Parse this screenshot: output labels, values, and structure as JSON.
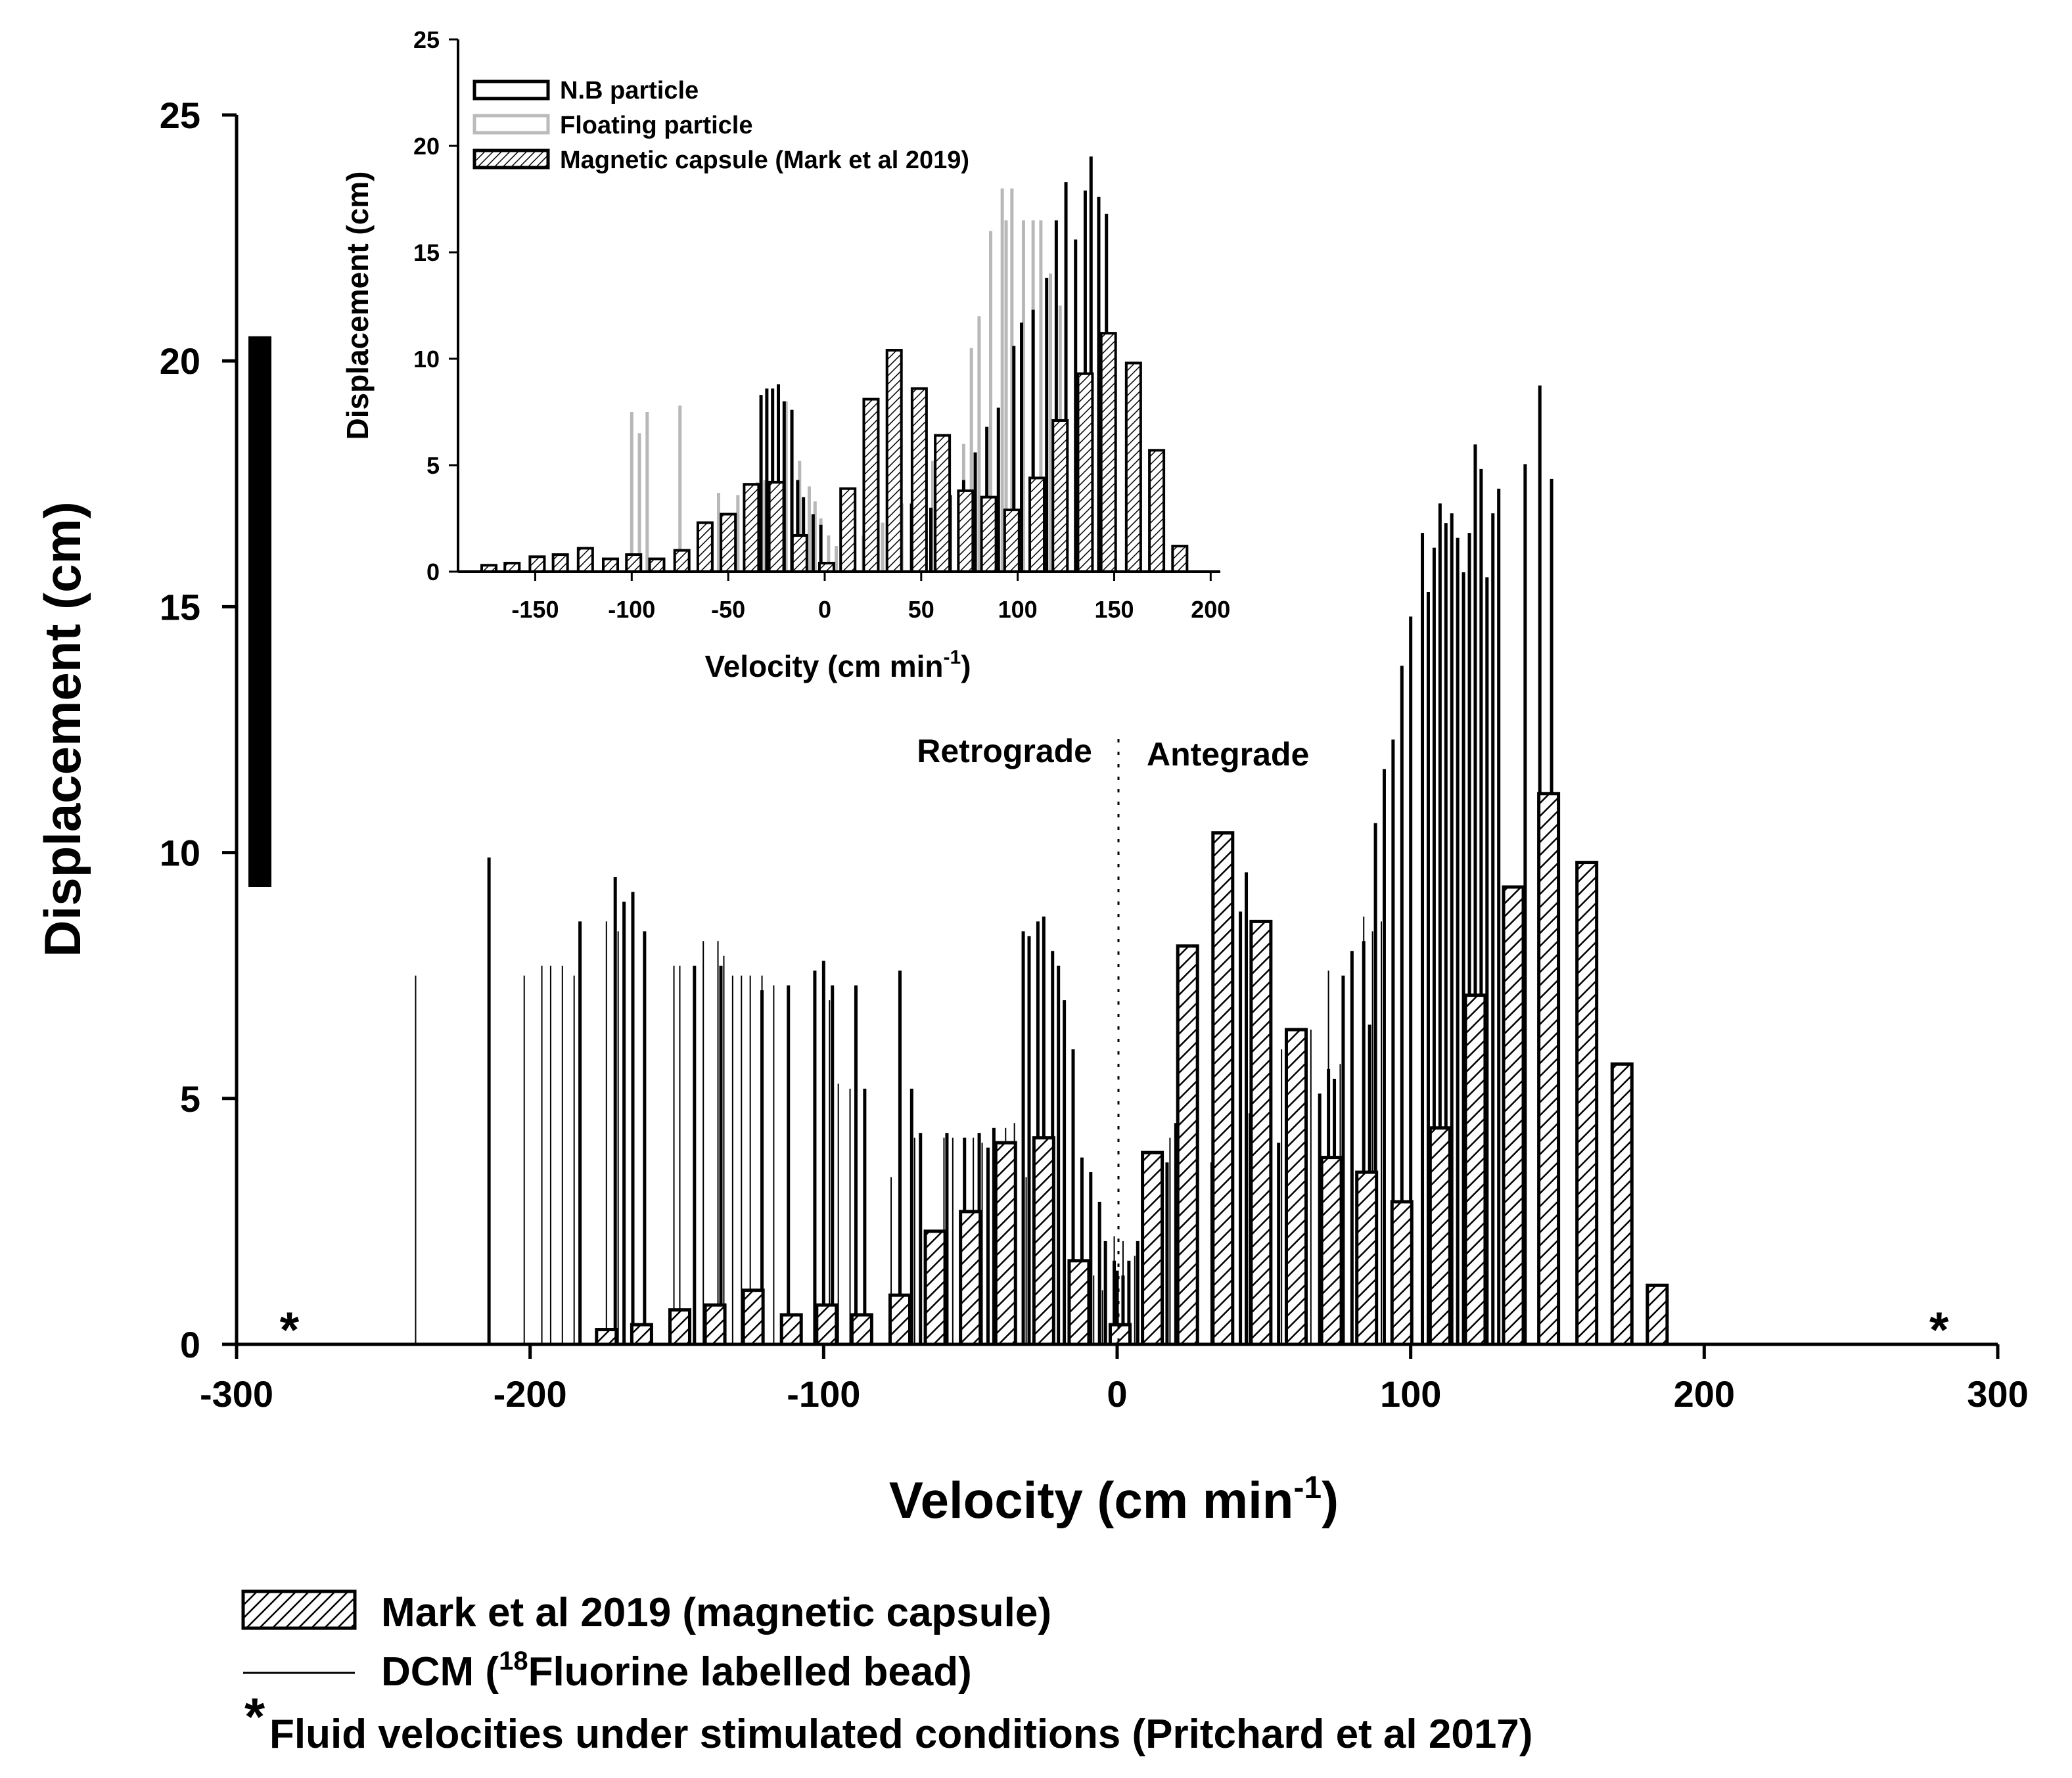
{
  "chart_data": [
    {
      "type": "bar",
      "title": "",
      "xlabel": "Velocity (cm min",
      "xlabel_sup": "-1",
      "xlabel_close": ")",
      "ylabel": "Displacement (cm)",
      "xlim": [
        -300,
        300
      ],
      "ylim": [
        0,
        25
      ],
      "xticks": [
        "-300",
        "-200",
        "-100",
        "0",
        "100",
        "200",
        "300"
      ],
      "yticks": [
        "0",
        "5",
        "10",
        "15",
        "20",
        "25"
      ],
      "region_labels": {
        "left": "Retrograde",
        "right": "Antegrade"
      },
      "star_symbol": "*",
      "stars_x": [
        -282,
        280
      ],
      "range_bar": {
        "y_from": 9.3,
        "y_to": 20.5
      },
      "series": [
        {
          "name": "Mark et al 2019 (magnetic capsule)",
          "style": "hatched",
          "x": [
            -174,
            -162,
            -149,
            -137,
            -124,
            -111,
            -99,
            -87,
            -74,
            -62,
            -50,
            -38,
            -25,
            -13,
            1,
            12,
            24,
            36,
            49,
            61,
            73,
            85,
            97,
            110,
            122,
            135,
            147,
            160,
            172,
            184
          ],
          "values": [
            0.3,
            0.4,
            0.7,
            0.8,
            1.1,
            0.6,
            0.8,
            0.6,
            1.0,
            2.3,
            2.7,
            4.1,
            4.2,
            1.7,
            0.4,
            3.9,
            8.1,
            10.4,
            8.6,
            6.4,
            3.8,
            3.5,
            2.9,
            4.4,
            7.1,
            9.3,
            11.2,
            9.8,
            5.7,
            1.2
          ]
        },
        {
          "name": "DCM (",
          "name_sup": "18",
          "name_rest": "Fluorine labelled bead)",
          "style": "thin-line",
          "x": [
            -239,
            -202,
            -196,
            -193,
            -189,
            -185,
            -174,
            -170,
            -165,
            -151,
            -149,
            -141,
            -136,
            -134,
            -131,
            -128,
            -125,
            -121,
            -117,
            -112,
            -98,
            -95,
            -91,
            -77,
            -74,
            -69,
            -59,
            -56,
            -52,
            -49,
            -46,
            -38,
            -35,
            -31,
            -22,
            -18,
            -15,
            -12,
            -8,
            -5,
            -1,
            2,
            6,
            9,
            14,
            18,
            21,
            26,
            32,
            38,
            42,
            45,
            52,
            56,
            62,
            66,
            69,
            72,
            76,
            80,
            84,
            87,
            90,
            94
          ],
          "values": [
            7.5,
            7.5,
            7.7,
            7.7,
            7.7,
            7.5,
            8.6,
            8.4,
            8.5,
            7.7,
            7.7,
            8.2,
            8.2,
            7.9,
            7.5,
            7.5,
            7.5,
            7.5,
            7.3,
            6.7,
            7.0,
            5.3,
            5.2,
            3.4,
            4.2,
            4.2,
            4.2,
            4.2,
            4.2,
            4.2,
            4.1,
            4.4,
            4.5,
            3.4,
            2.6,
            2.2,
            1.6,
            1.5,
            1.4,
            1.1,
            2.2,
            2.1,
            1.8,
            1.8,
            3.1,
            4.2,
            4.4,
            2.0,
            3.7,
            3.3,
            3.1,
            4.7,
            4.2,
            6.0,
            5.6,
            6.4,
            4.6,
            7.6,
            5.7,
            7.6,
            8.7,
            8.4,
            8.6,
            10.2
          ]
        },
        {
          "name": "N.B particle",
          "style": "thick-line",
          "x": [
            -214,
            -183,
            -171,
            -168,
            -165,
            -161,
            -144,
            -135,
            -121,
            -112,
            -103,
            -100,
            -97,
            -89,
            -86,
            -74,
            -70,
            -67,
            -58,
            -52,
            -47,
            -44,
            -42,
            -32,
            -30,
            -27,
            -25,
            -22,
            -20,
            -18,
            -15,
            -12,
            -9,
            -6,
            -4,
            -1,
            0,
            2,
            4,
            7,
            10,
            14,
            17,
            20,
            23,
            26,
            33,
            35,
            39,
            42,
            44,
            46,
            48,
            55,
            60,
            64,
            69,
            72,
            74,
            77,
            80,
            84,
            86,
            88,
            91,
            94,
            97,
            100,
            104,
            106,
            108,
            110,
            112,
            114,
            116,
            118,
            120,
            122,
            124,
            126,
            128,
            130,
            139,
            144,
            148
          ],
          "values": [
            9.9,
            8.6,
            9.5,
            9.0,
            9.2,
            8.4,
            7.7,
            7.7,
            7.2,
            7.3,
            7.6,
            7.8,
            7.3,
            7.3,
            5.2,
            7.6,
            5.2,
            4.3,
            4.3,
            4.2,
            4.3,
            4.0,
            4.4,
            8.4,
            8.3,
            8.6,
            8.7,
            8.0,
            7.7,
            7.0,
            6.0,
            3.8,
            3.5,
            2.9,
            2.1,
            1.7,
            1.5,
            1.4,
            1.7,
            2.1,
            2.5,
            3.3,
            3.7,
            4.5,
            5.1,
            6.5,
            6.3,
            7.4,
            8.1,
            8.8,
            9.6,
            7.2,
            7.8,
            4.1,
            4.7,
            4.9,
            5.1,
            5.6,
            5.4,
            7.5,
            8.0,
            8.2,
            6.5,
            10.6,
            11.7,
            12.3,
            13.8,
            14.8,
            16.5,
            15.3,
            16.2,
            17.1,
            16.7,
            16.9,
            16.4,
            15.7,
            16.5,
            18.3,
            17.8,
            15.6,
            16.9,
            17.4,
            17.9,
            19.5,
            17.6
          ]
        }
      ]
    },
    {
      "type": "bar",
      "title": "",
      "xlabel": "Velocity (cm min",
      "xlabel_sup": "-1",
      "xlabel_close": ")",
      "ylabel": "Displacement (cm)",
      "xlim": [
        -190,
        205
      ],
      "ylim": [
        0,
        25
      ],
      "xticks": [
        "-150",
        "-100",
        "-50",
        "0",
        "50",
        "100",
        "150",
        "200"
      ],
      "xtick_values": [
        -150,
        -100,
        -50,
        0,
        50,
        100,
        150,
        200
      ],
      "yticks": [
        "0",
        "5",
        "10",
        "15",
        "20",
        "25"
      ],
      "legend": [
        "N.B particle",
        "Floating particle",
        "Magnetic capsule (Mark et al 2019)"
      ],
      "series": [
        {
          "name": "Floating particle",
          "style": "grey-line",
          "x": [
            -100,
            -96,
            -92,
            -75,
            -55,
            -45,
            -40,
            -35,
            -31,
            -24,
            -20,
            -17,
            -13,
            -8,
            -5,
            -2,
            2,
            6,
            10,
            15,
            20,
            30,
            40,
            56,
            72,
            76,
            80,
            86,
            92,
            94,
            97,
            103,
            108,
            112,
            117,
            122
          ],
          "values": [
            7.5,
            6.5,
            7.5,
            7.8,
            3.7,
            3.6,
            4.0,
            4.2,
            4.3,
            8.2,
            8.0,
            7.6,
            5.2,
            4.0,
            3.3,
            2.5,
            1.7,
            1.2,
            1.0,
            1.1,
            1.7,
            2.3,
            3.2,
            5.2,
            6.0,
            10.5,
            12.0,
            16.0,
            18.0,
            16.5,
            18.0,
            16.5,
            16.5,
            16.5,
            14.0,
            12.5
          ]
        },
        {
          "name": "N.B particle",
          "style": "thick-line",
          "x": [
            -33,
            -30,
            -27,
            -24,
            -21,
            -17,
            -14,
            -11,
            -6,
            -2,
            22,
            27,
            45,
            55,
            65,
            72,
            78,
            84,
            90,
            98,
            102,
            108,
            115,
            120,
            125,
            130,
            135,
            138,
            142,
            146
          ],
          "values": [
            8.3,
            8.6,
            8.6,
            8.8,
            8.0,
            7.6,
            4.3,
            3.5,
            2.7,
            2.2,
            2.3,
            2.5,
            3.2,
            3.0,
            3.6,
            4.3,
            5.6,
            6.8,
            7.7,
            10.6,
            11.7,
            12.3,
            13.8,
            16.5,
            18.3,
            15.6,
            17.9,
            19.5,
            17.6,
            16.8
          ]
        },
        {
          "name": "Magnetic capsule (Mark et al 2019)",
          "style": "hatched",
          "x": [
            -174,
            -162,
            -149,
            -137,
            -124,
            -111,
            -99,
            -87,
            -74,
            -62,
            -50,
            -38,
            -25,
            -13,
            1,
            12,
            24,
            36,
            49,
            61,
            73,
            85,
            97,
            110,
            122,
            135,
            147,
            160,
            172,
            184
          ],
          "values": [
            0.3,
            0.4,
            0.7,
            0.8,
            1.1,
            0.6,
            0.8,
            0.6,
            1.0,
            2.3,
            2.7,
            4.1,
            4.2,
            1.7,
            0.4,
            3.9,
            8.1,
            10.4,
            8.6,
            6.4,
            3.8,
            3.5,
            2.9,
            4.4,
            7.1,
            9.3,
            11.2,
            9.8,
            5.7,
            1.2
          ]
        }
      ]
    }
  ],
  "legend": {
    "capsule": "Mark et al 2019 (magnetic capsule)",
    "dcm_prefix": "DCM (",
    "dcm_sup": "18",
    "dcm_rest": "Fluorine labelled bead)",
    "star": "*",
    "fluid": "Fluid velocities under stimulated conditions (Pritchard et al 2017)"
  }
}
